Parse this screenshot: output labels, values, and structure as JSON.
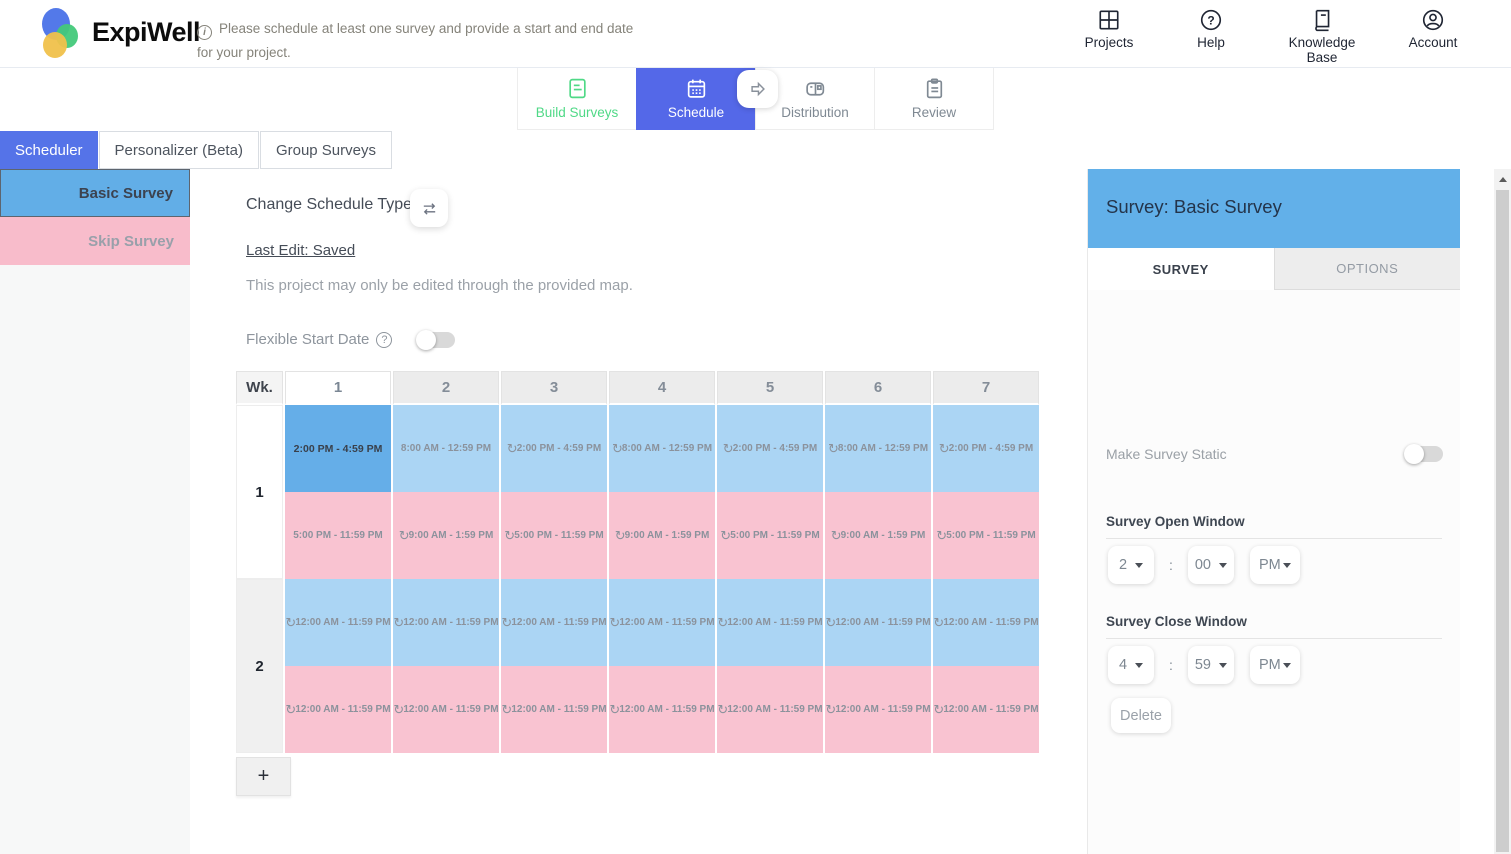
{
  "header": {
    "brand": "ExpiWell",
    "notice": "Please schedule at least one survey and provide a start and end date for your project.",
    "nav": [
      {
        "label": "Projects"
      },
      {
        "label": "Help"
      },
      {
        "label": "Knowledge Base"
      },
      {
        "label": "Account"
      }
    ]
  },
  "steps": [
    {
      "label": "Build Surveys"
    },
    {
      "label": "Schedule"
    },
    {
      "label": "Distribution"
    },
    {
      "label": "Review"
    }
  ],
  "subtabs": [
    {
      "label": "Scheduler"
    },
    {
      "label": "Personalizer (Beta)"
    },
    {
      "label": "Group Surveys"
    }
  ],
  "sidebar": {
    "items": [
      {
        "label": "Basic Survey"
      },
      {
        "label": "Skip Survey"
      }
    ]
  },
  "main": {
    "change_schedule_type_label": "Change Schedule Type",
    "last_edit": "Last Edit: Saved",
    "note": "This project may only be edited through the provided map.",
    "flexible_start_label": "Flexible Start Date",
    "add_week_label": "+"
  },
  "grid": {
    "corner_label": "Wk.",
    "selected_day": "1",
    "day_headers": [
      "1",
      "2",
      "3",
      "4",
      "5",
      "6",
      "7"
    ],
    "weeks": [
      {
        "label": "1",
        "rows": [
          {
            "color": "blue",
            "cells": [
              {
                "time": "2:00 PM - 4:59 PM",
                "repeat": false,
                "selected": true
              },
              {
                "time": "8:00 AM - 12:59 PM",
                "repeat": false,
                "selected": false
              },
              {
                "time": "2:00 PM - 4:59 PM",
                "repeat": true,
                "selected": false
              },
              {
                "time": "8:00 AM - 12:59 PM",
                "repeat": true,
                "selected": false
              },
              {
                "time": "2:00 PM - 4:59 PM",
                "repeat": true,
                "selected": false
              },
              {
                "time": "8:00 AM - 12:59 PM",
                "repeat": true,
                "selected": false
              },
              {
                "time": "2:00 PM - 4:59 PM",
                "repeat": true,
                "selected": false
              }
            ]
          },
          {
            "color": "pink",
            "cells": [
              {
                "time": "5:00 PM - 11:59 PM",
                "repeat": false,
                "selected": false
              },
              {
                "time": "9:00 AM - 1:59 PM",
                "repeat": true,
                "selected": false
              },
              {
                "time": "5:00 PM - 11:59 PM",
                "repeat": true,
                "selected": false
              },
              {
                "time": "9:00 AM - 1:59 PM",
                "repeat": true,
                "selected": false
              },
              {
                "time": "5:00 PM - 11:59 PM",
                "repeat": true,
                "selected": false
              },
              {
                "time": "9:00 AM - 1:59 PM",
                "repeat": true,
                "selected": false
              },
              {
                "time": "5:00 PM - 11:59 PM",
                "repeat": true,
                "selected": false
              }
            ]
          }
        ]
      },
      {
        "label": "2",
        "rows": [
          {
            "color": "blue",
            "cells": [
              {
                "time": "12:00 AM - 11:59 PM",
                "repeat": true,
                "selected": false
              },
              {
                "time": "12:00 AM - 11:59 PM",
                "repeat": true,
                "selected": false
              },
              {
                "time": "12:00 AM - 11:59 PM",
                "repeat": true,
                "selected": false
              },
              {
                "time": "12:00 AM - 11:59 PM",
                "repeat": true,
                "selected": false
              },
              {
                "time": "12:00 AM - 11:59 PM",
                "repeat": true,
                "selected": false
              },
              {
                "time": "12:00 AM - 11:59 PM",
                "repeat": true,
                "selected": false
              },
              {
                "time": "12:00 AM - 11:59 PM",
                "repeat": true,
                "selected": false
              }
            ]
          },
          {
            "color": "pink",
            "cells": [
              {
                "time": "12:00 AM - 11:59 PM",
                "repeat": true,
                "selected": false
              },
              {
                "time": "12:00 AM - 11:59 PM",
                "repeat": true,
                "selected": false
              },
              {
                "time": "12:00 AM - 11:59 PM",
                "repeat": true,
                "selected": false
              },
              {
                "time": "12:00 AM - 11:59 PM",
                "repeat": true,
                "selected": false
              },
              {
                "time": "12:00 AM - 11:59 PM",
                "repeat": true,
                "selected": false
              },
              {
                "time": "12:00 AM - 11:59 PM",
                "repeat": true,
                "selected": false
              },
              {
                "time": "12:00 AM - 11:59 PM",
                "repeat": true,
                "selected": false
              }
            ]
          }
        ]
      }
    ]
  },
  "panel": {
    "title": "Survey: Basic Survey",
    "tabs": [
      {
        "label": "SURVEY"
      },
      {
        "label": "OPTIONS"
      }
    ],
    "static_label": "Make Survey Static",
    "time_separator": ":",
    "open_window": {
      "heading": "Survey Open Window",
      "hour": "2",
      "minute": "00",
      "period": "PM"
    },
    "close_window": {
      "heading": "Survey Close Window",
      "hour": "4",
      "minute": "59",
      "period": "PM"
    },
    "delete_label": "Delete"
  },
  "colors": {
    "accent_blue": "#5468e8",
    "panel_blue": "#62b0e9",
    "cell_blue": "#abd5f4",
    "cell_blue_selected": "#65aee8",
    "cell_pink": "#f9c3d1",
    "sidebar_blue": "#62aee7",
    "sidebar_pink": "#f8bccb",
    "build_green": "#50d987"
  }
}
